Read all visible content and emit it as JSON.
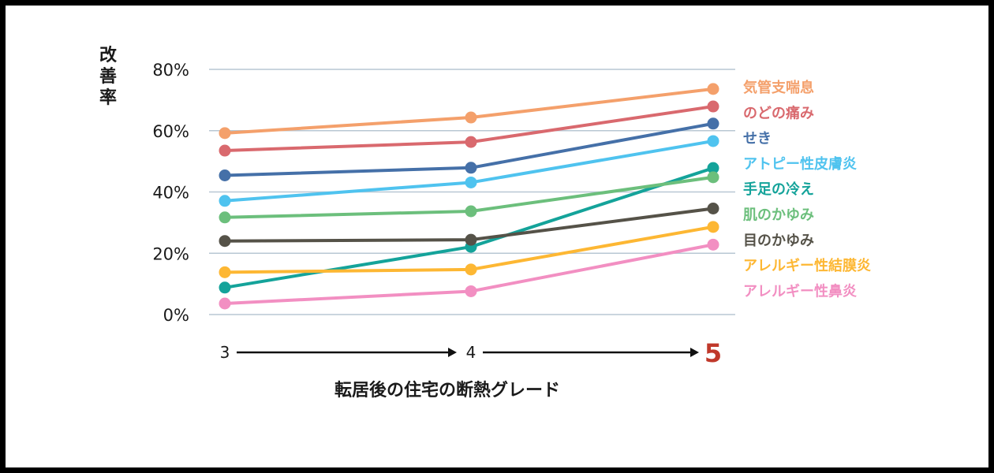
{
  "chart_data": {
    "type": "line",
    "ylabel": "改善率",
    "xlabel": "転居後の住宅の断熱グレード",
    "categories": [
      "3",
      "4",
      "5"
    ],
    "ylim": [
      0,
      80
    ],
    "yticks": [
      "0%",
      "20%",
      "40%",
      "60%",
      "80%"
    ],
    "ytick_values": [
      0,
      20,
      40,
      60,
      80
    ],
    "grid": "horizontal",
    "legend_placement": "right",
    "highlight_color": "#c0392b",
    "series": [
      {
        "name": "気管支喘息",
        "color": "#f4a06b",
        "values": [
          59.2,
          64.3,
          73.6
        ]
      },
      {
        "name": "のどの痛み",
        "color": "#d9696e",
        "values": [
          53.5,
          56.3,
          67.9
        ]
      },
      {
        "name": "せき",
        "color": "#4570a8",
        "values": [
          45.4,
          47.9,
          62.3
        ]
      },
      {
        "name": "アトピー性皮膚炎",
        "color": "#4fc3ef",
        "values": [
          37.1,
          43.1,
          56.6
        ]
      },
      {
        "name": "手足の冷え",
        "color": "#14a39a",
        "values": [
          8.8,
          22.1,
          47.8
        ]
      },
      {
        "name": "肌のかゆみ",
        "color": "#6cbf7c",
        "values": [
          31.7,
          33.7,
          44.8
        ]
      },
      {
        "name": "目のかゆみ",
        "color": "#555248",
        "values": [
          24.0,
          24.4,
          34.6
        ]
      },
      {
        "name": "アレルギー性結膜炎",
        "color": "#fdb733",
        "values": [
          13.8,
          14.7,
          28.6
        ]
      },
      {
        "name": "アレルギー性鼻炎",
        "color": "#f28fc2",
        "values": [
          3.6,
          7.6,
          22.8
        ]
      }
    ]
  }
}
